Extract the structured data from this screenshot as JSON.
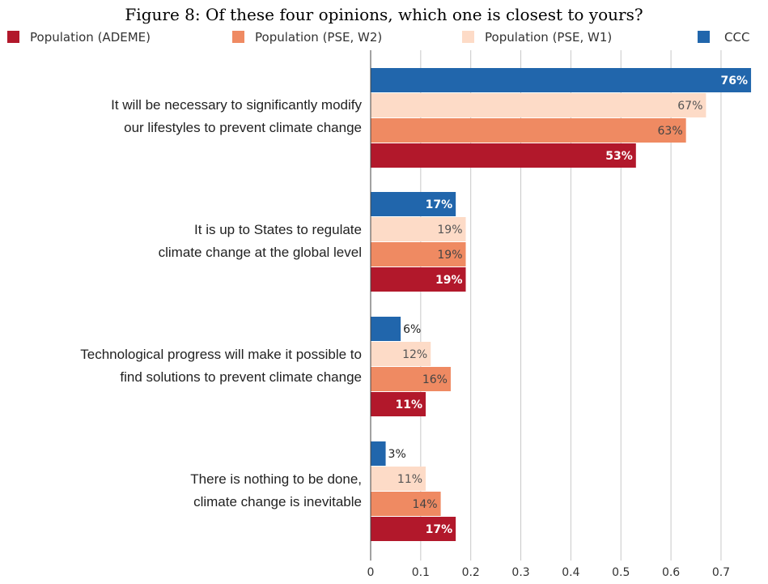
{
  "chart_data": {
    "type": "bar",
    "orientation": "horizontal",
    "title": "Figure 8: Of these four opinions, which one is closest to yours?",
    "xlabel": "",
    "ylabel": "",
    "xlim": [
      0,
      0.76
    ],
    "xticks": [
      "0",
      "0.1",
      "0.2",
      "0.3",
      "0.4",
      "0.5",
      "0.6",
      "0.7"
    ],
    "grid": true,
    "legend_position": "top",
    "categories": [
      "It will be necessary to significantly modify our lifestyles to prevent climate change",
      "It is up to States to regulate climate change at the global level",
      "Technological progress will make it possible to find solutions to prevent climate change",
      "There is nothing to be done, climate change is inevitable"
    ],
    "category_lines": [
      [
        "It will be necessary to significantly modify",
        "our lifestyles to prevent climate change"
      ],
      [
        "It is up to States to regulate",
        "climate change at the global level"
      ],
      [
        "Technological progress will make it possible to",
        "find solutions to prevent climate change"
      ],
      [
        "There is nothing to be done,",
        "climate change is inevitable"
      ]
    ],
    "series": [
      {
        "name": "CCC",
        "color": "#2166ac",
        "values": [
          0.76,
          0.17,
          0.06,
          0.03
        ],
        "labels": [
          "76%",
          "17%",
          "6%",
          "3%"
        ]
      },
      {
        "name": "Population (PSE, W1)",
        "color": "#fddbc7",
        "values": [
          0.67,
          0.19,
          0.12,
          0.11
        ],
        "labels": [
          "67%",
          "19%",
          "12%",
          "11%"
        ]
      },
      {
        "name": "Population (PSE, W2)",
        "color": "#ef8a62",
        "values": [
          0.63,
          0.19,
          0.16,
          0.14
        ],
        "labels": [
          "63%",
          "19%",
          "16%",
          "14%"
        ]
      },
      {
        "name": "Population (ADEME)",
        "color": "#b2182b",
        "values": [
          0.53,
          0.19,
          0.11,
          0.17
        ],
        "labels": [
          "53%",
          "19%",
          "11%",
          "17%"
        ]
      }
    ],
    "legend_order": [
      "Population (ADEME)",
      "Population (PSE, W2)",
      "Population (PSE, W1)",
      "CCC"
    ]
  }
}
